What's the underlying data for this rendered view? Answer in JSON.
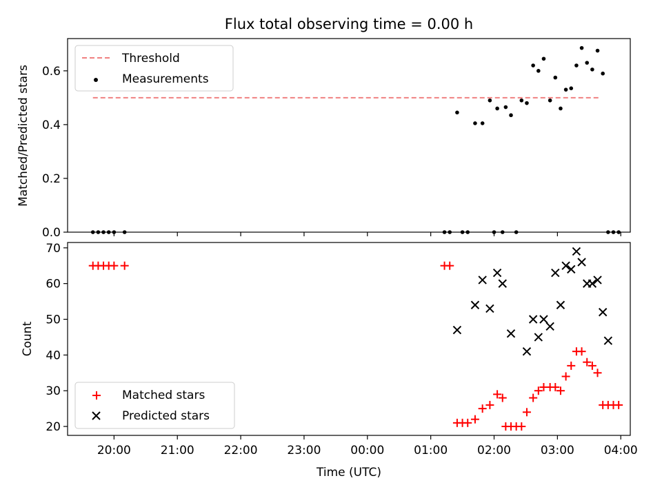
{
  "chart_data": {
    "title": "Flux total observing time = 0.00 h",
    "x_axis": {
      "label": "Time (UTC)",
      "ticks": [
        "20:00",
        "21:00",
        "22:00",
        "23:00",
        "00:00",
        "01:00",
        "02:00",
        "03:00",
        "04:00"
      ],
      "range": [
        "19:16",
        "04:09"
      ]
    },
    "charts": [
      {
        "type": "scatter",
        "ylabel": "Matched/Predicted stars",
        "ylim": [
          0,
          0.72
        ],
        "yticks": [
          "0.0",
          "0.2",
          "0.4",
          "0.6"
        ],
        "legend_position": "upper-left",
        "threshold": {
          "name": "Threshold",
          "value": 0.5,
          "x_range": [
            "19:40",
            "03:40"
          ],
          "color": "#f08080",
          "style": "dashed"
        },
        "series": [
          {
            "name": "Measurements",
            "color": "#000000",
            "marker": "dot",
            "points": [
              [
                "19:40",
                0.0
              ],
              [
                "19:45",
                0.0
              ],
              [
                "19:50",
                0.0
              ],
              [
                "19:55",
                0.0
              ],
              [
                "20:00",
                0.0
              ],
              [
                "20:10",
                0.0
              ],
              [
                "01:13",
                0.0
              ],
              [
                "01:18",
                0.0
              ],
              [
                "01:25",
                0.445
              ],
              [
                "01:30",
                0.0
              ],
              [
                "01:35",
                0.0
              ],
              [
                "01:42",
                0.405
              ],
              [
                "01:49",
                0.405
              ],
              [
                "01:56",
                0.49
              ],
              [
                "02:00",
                0.0
              ],
              [
                "02:03",
                0.46
              ],
              [
                "02:08",
                0.0
              ],
              [
                "02:11",
                0.465
              ],
              [
                "02:16",
                0.435
              ],
              [
                "02:21",
                0.0
              ],
              [
                "02:26",
                0.49
              ],
              [
                "02:31",
                0.48
              ],
              [
                "02:37",
                0.62
              ],
              [
                "02:42",
                0.6
              ],
              [
                "02:47",
                0.645
              ],
              [
                "02:53",
                0.49
              ],
              [
                "02:58",
                0.575
              ],
              [
                "03:03",
                0.46
              ],
              [
                "03:08",
                0.53
              ],
              [
                "03:13",
                0.535
              ],
              [
                "03:18",
                0.62
              ],
              [
                "03:23",
                0.685
              ],
              [
                "03:28",
                0.63
              ],
              [
                "03:33",
                0.605
              ],
              [
                "03:38",
                0.675
              ],
              [
                "03:43",
                0.59
              ],
              [
                "03:48",
                0.0
              ],
              [
                "03:53",
                0.0
              ],
              [
                "03:58",
                0.0
              ]
            ]
          }
        ]
      },
      {
        "type": "scatter",
        "ylabel": "Count",
        "ylim": [
          17.5,
          71.5
        ],
        "yticks": [
          "20",
          "30",
          "40",
          "50",
          "60",
          "70"
        ],
        "legend_position": "lower-left",
        "series": [
          {
            "name": "Matched stars",
            "color": "#ff0000",
            "marker": "plus",
            "points": [
              [
                "19:40",
                65
              ],
              [
                "19:45",
                65
              ],
              [
                "19:50",
                65
              ],
              [
                "19:55",
                65
              ],
              [
                "20:00",
                65
              ],
              [
                "20:10",
                65
              ],
              [
                "01:13",
                65
              ],
              [
                "01:18",
                65
              ],
              [
                "01:25",
                21
              ],
              [
                "01:30",
                21
              ],
              [
                "01:35",
                21
              ],
              [
                "01:42",
                22
              ],
              [
                "01:49",
                25
              ],
              [
                "01:56",
                26
              ],
              [
                "02:03",
                29
              ],
              [
                "02:08",
                28
              ],
              [
                "02:11",
                20
              ],
              [
                "02:16",
                20
              ],
              [
                "02:21",
                20
              ],
              [
                "02:26",
                20
              ],
              [
                "02:31",
                24
              ],
              [
                "02:37",
                28
              ],
              [
                "02:42",
                30
              ],
              [
                "02:47",
                31
              ],
              [
                "02:53",
                31
              ],
              [
                "02:58",
                31
              ],
              [
                "03:03",
                30
              ],
              [
                "03:08",
                34
              ],
              [
                "03:13",
                37
              ],
              [
                "03:18",
                41
              ],
              [
                "03:23",
                41
              ],
              [
                "03:28",
                38
              ],
              [
                "03:33",
                37
              ],
              [
                "03:38",
                35
              ],
              [
                "03:43",
                26
              ],
              [
                "03:48",
                26
              ],
              [
                "03:53",
                26
              ],
              [
                "03:58",
                26
              ]
            ]
          },
          {
            "name": "Predicted stars",
            "color": "#000000",
            "marker": "x",
            "points": [
              [
                "01:25",
                47
              ],
              [
                "01:42",
                54
              ],
              [
                "01:49",
                61
              ],
              [
                "01:56",
                53
              ],
              [
                "02:03",
                63
              ],
              [
                "02:08",
                60
              ],
              [
                "02:16",
                46
              ],
              [
                "02:31",
                41
              ],
              [
                "02:37",
                50
              ],
              [
                "02:42",
                45
              ],
              [
                "02:47",
                50
              ],
              [
                "02:53",
                48
              ],
              [
                "02:58",
                63
              ],
              [
                "03:03",
                54
              ],
              [
                "03:08",
                65
              ],
              [
                "03:13",
                64
              ],
              [
                "03:18",
                69
              ],
              [
                "03:23",
                66
              ],
              [
                "03:28",
                60
              ],
              [
                "03:33",
                60
              ],
              [
                "03:38",
                61
              ],
              [
                "03:43",
                52
              ],
              [
                "03:48",
                44
              ]
            ]
          }
        ]
      }
    ]
  }
}
